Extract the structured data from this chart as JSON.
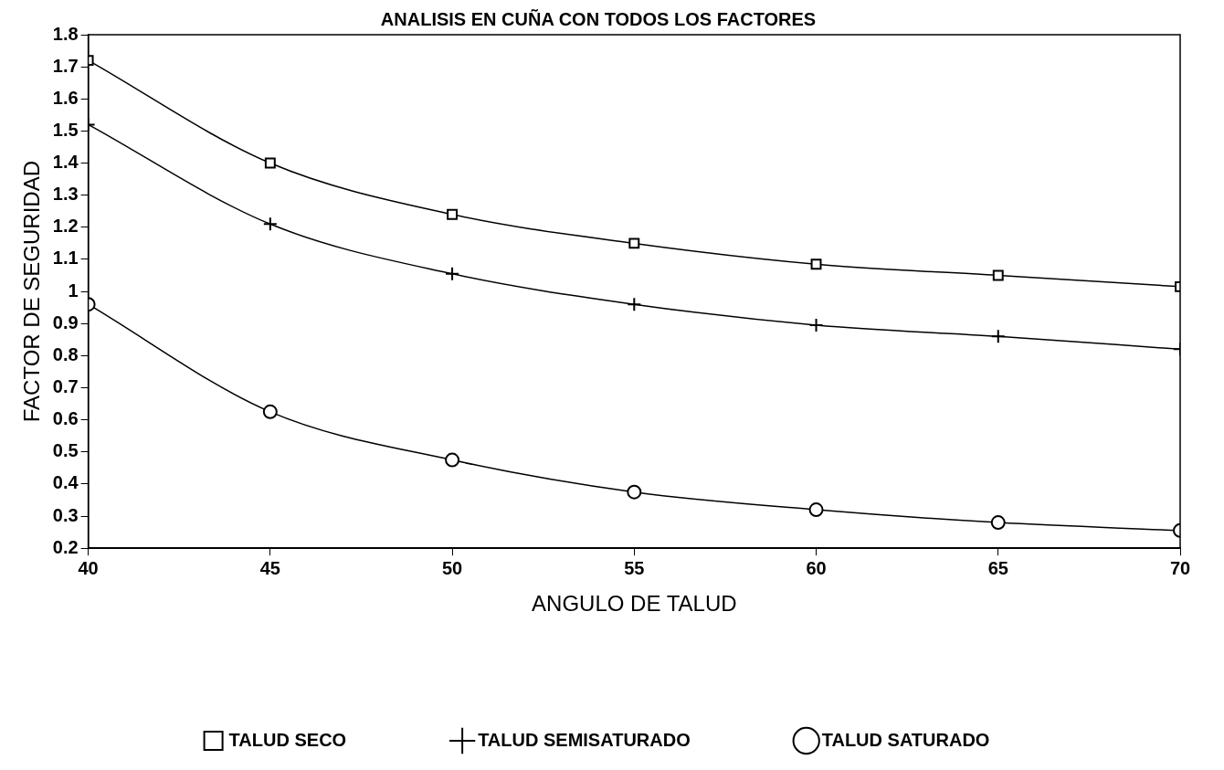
{
  "chart_data": {
    "type": "line",
    "title": "ANALISIS EN CUÑA CON TODOS LOS FACTORES",
    "xlabel": "ANGULO DE TALUD",
    "ylabel": "FACTOR DE SEGURIDAD",
    "x": [
      40,
      45,
      50,
      55,
      60,
      65,
      70
    ],
    "series": [
      {
        "name": "TALUD SECO",
        "color": "#000000",
        "marker": "square",
        "values": [
          1.72,
          1.4,
          1.24,
          1.15,
          1.085,
          1.05,
          1.015
        ]
      },
      {
        "name": "TALUD SEMISATURADO",
        "color": "#000000",
        "marker": "cross",
        "values": [
          1.52,
          1.21,
          1.055,
          0.96,
          0.895,
          0.86,
          0.82
        ]
      },
      {
        "name": "TALUD SATURADO",
        "color": "#000000",
        "marker": "circle",
        "values": [
          0.96,
          0.625,
          0.475,
          0.375,
          0.32,
          0.28,
          0.255
        ]
      }
    ],
    "xlim": [
      40,
      70
    ],
    "xticks": [
      40,
      45,
      50,
      55,
      60,
      65,
      70
    ],
    "ylim": [
      0.2,
      1.8
    ],
    "yticks": [
      0.2,
      0.3,
      0.4,
      0.5,
      0.6,
      0.7,
      0.8,
      0.9,
      1,
      1.1,
      1.2,
      1.3,
      1.4,
      1.5,
      1.6,
      1.7,
      1.8
    ],
    "grid": false,
    "legend": "bottom"
  }
}
